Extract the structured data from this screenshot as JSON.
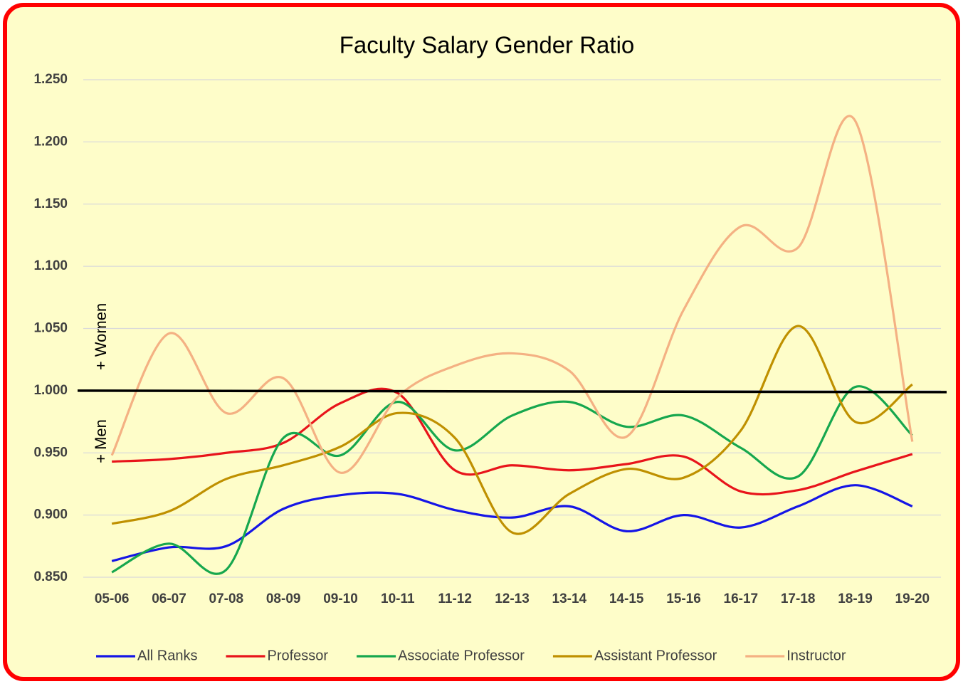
{
  "chart_data": {
    "type": "line",
    "title": "Faculty Salary Gender Ratio",
    "annotations": [
      "+ Women",
      "+ Men"
    ],
    "reference_line": 1.0,
    "categories": [
      "05-06",
      "06-07",
      "07-08",
      "08-09",
      "09-10",
      "10-11",
      "11-12",
      "12-13",
      "13-14",
      "14-15",
      "15-16",
      "16-17",
      "17-18",
      "18-19",
      "19-20"
    ],
    "series": [
      {
        "name": "All Ranks",
        "color": "#1515e6",
        "values": [
          0.863,
          0.874,
          0.875,
          0.905,
          0.916,
          0.917,
          0.904,
          0.898,
          0.907,
          0.887,
          0.9,
          0.89,
          0.907,
          0.924,
          0.907
        ]
      },
      {
        "name": "Professor",
        "color": "#e8141b",
        "values": [
          0.943,
          0.945,
          0.95,
          0.958,
          0.99,
          0.998,
          0.936,
          0.94,
          0.936,
          0.941,
          0.947,
          0.919,
          0.92,
          0.935,
          0.949
        ]
      },
      {
        "name": "Associate Professor",
        "color": "#16a74e",
        "values": [
          0.854,
          0.877,
          0.856,
          0.962,
          0.948,
          0.991,
          0.952,
          0.98,
          0.991,
          0.971,
          0.98,
          0.954,
          0.931,
          1.003,
          0.964
        ]
      },
      {
        "name": "Assistant Professor",
        "color": "#bf9000",
        "values": [
          0.893,
          0.903,
          0.929,
          0.94,
          0.955,
          0.982,
          0.962,
          0.886,
          0.917,
          0.937,
          0.93,
          0.968,
          1.052,
          0.975,
          1.005
        ]
      },
      {
        "name": "Instructor",
        "color": "#f4b183",
        "values": [
          0.948,
          1.046,
          0.982,
          1.01,
          0.934,
          0.995,
          1.02,
          1.03,
          1.016,
          0.963,
          1.065,
          1.132,
          1.115,
          1.217,
          0.959
        ]
      }
    ],
    "ylim": [
      0.85,
      1.25
    ],
    "yticks": [
      {
        "value": 0.85,
        "label": "0.850"
      },
      {
        "value": 0.9,
        "label": "0.900"
      },
      {
        "value": 0.95,
        "label": "0.950"
      },
      {
        "value": 1.0,
        "label": "1.000"
      },
      {
        "value": 1.05,
        "label": "1.050"
      },
      {
        "value": 1.1,
        "label": "1.100"
      },
      {
        "value": 1.15,
        "label": "1.150"
      },
      {
        "value": 1.2,
        "label": "1.200"
      },
      {
        "value": 1.25,
        "label": "1.250"
      }
    ],
    "grid": true,
    "legend": "bottom"
  }
}
